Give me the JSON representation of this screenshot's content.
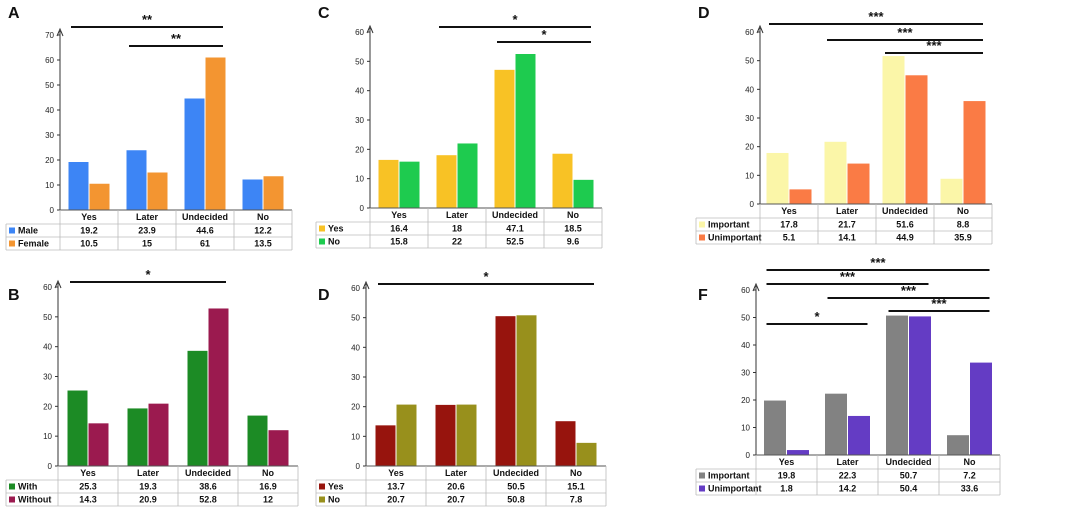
{
  "chart_data": [
    {
      "id": "A",
      "panel_label": "A",
      "type": "bar",
      "categories": [
        "Yes",
        "Later",
        "Undecided",
        "No"
      ],
      "ylim": [
        0,
        70
      ],
      "yticks": [
        0,
        10,
        20,
        30,
        40,
        50,
        60,
        70
      ],
      "series": [
        {
          "name": "Male",
          "color": "#3d85f5",
          "values": [
            19.2,
            23.9,
            44.6,
            12.2
          ],
          "labels": [
            "19.2",
            "23.9",
            "44.6",
            "12.2"
          ]
        },
        {
          "name": "Female",
          "color": "#f39531",
          "values": [
            10.5,
            15,
            61,
            13.5
          ],
          "labels": [
            "10.5",
            "15",
            "61",
            "13.5"
          ]
        }
      ],
      "significance": [
        {
          "from": "Yes",
          "to": "Undecided",
          "label": "**"
        },
        {
          "from": "Later",
          "to": "Undecided",
          "label": "**"
        }
      ]
    },
    {
      "id": "C",
      "panel_label": "C",
      "type": "bar",
      "categories": [
        "Yes",
        "Later",
        "Undecided",
        "No"
      ],
      "ylim": [
        0,
        60
      ],
      "yticks": [
        0,
        10,
        20,
        30,
        40,
        50,
        60
      ],
      "series": [
        {
          "name": "Yes",
          "color": "#f8c225",
          "values": [
            16.4,
            18,
            47.1,
            18.5
          ],
          "labels": [
            "16.4",
            "18",
            "47.1",
            "18.5"
          ]
        },
        {
          "name": "No",
          "color": "#1ecb4f",
          "values": [
            15.8,
            22,
            52.5,
            9.6
          ],
          "labels": [
            "15.8",
            "22",
            "52.5",
            "9.6"
          ]
        }
      ],
      "significance": [
        {
          "from": "Later",
          "to": "No",
          "label": "*"
        },
        {
          "from": "Undecided",
          "to": "No",
          "label": "*"
        }
      ]
    },
    {
      "id": "D1",
      "panel_label": "D",
      "type": "bar",
      "categories": [
        "Yes",
        "Later",
        "Undecided",
        "No"
      ],
      "ylim": [
        0,
        60
      ],
      "yticks": [
        0,
        10,
        20,
        30,
        40,
        50,
        60
      ],
      "series": [
        {
          "name": "Important",
          "color": "#fbf6a8",
          "values": [
            17.8,
            21.7,
            51.6,
            8.8
          ],
          "labels": [
            "17.8",
            "21.7",
            "51.6",
            "8.8"
          ]
        },
        {
          "name": "Unimportant",
          "color": "#fa7b45",
          "values": [
            5.1,
            14.1,
            44.9,
            35.9
          ],
          "labels": [
            "5.1",
            "14.1",
            "44.9",
            "35.9"
          ]
        }
      ],
      "significance": [
        {
          "from": "Yes",
          "to": "No",
          "label": "***"
        },
        {
          "from": "Later",
          "to": "No",
          "label": "***"
        },
        {
          "from": "Undecided",
          "to": "No",
          "label": "***"
        }
      ]
    },
    {
      "id": "B",
      "panel_label": "B",
      "type": "bar",
      "categories": [
        "Yes",
        "Later",
        "Undecided",
        "No"
      ],
      "ylim": [
        0,
        60
      ],
      "yticks": [
        0,
        10,
        20,
        30,
        40,
        50,
        60
      ],
      "series": [
        {
          "name": "With",
          "color": "#1c8b25",
          "values": [
            25.3,
            19.3,
            38.6,
            16.9
          ],
          "labels": [
            "25.3",
            "19.3",
            "38.6",
            "16.9"
          ]
        },
        {
          "name": "Without",
          "color": "#9b1a4f",
          "values": [
            14.3,
            20.9,
            52.8,
            12
          ],
          "labels": [
            "14.3",
            "20.9",
            "52.8",
            "12"
          ]
        }
      ],
      "significance": [
        {
          "from": "Yes",
          "to": "Undecided",
          "label": "*"
        }
      ]
    },
    {
      "id": "D2",
      "panel_label": "D",
      "type": "bar",
      "categories": [
        "Yes",
        "Later",
        "Undecided",
        "No"
      ],
      "ylim": [
        0,
        60
      ],
      "yticks": [
        0,
        10,
        20,
        30,
        40,
        50,
        60
      ],
      "series": [
        {
          "name": "Yes",
          "color": "#97140d",
          "values": [
            13.7,
            20.6,
            50.5,
            15.1
          ],
          "labels": [
            "13.7",
            "20.6",
            "50.5",
            "15.1"
          ]
        },
        {
          "name": "No",
          "color": "#98901c",
          "values": [
            20.7,
            20.7,
            50.8,
            7.8
          ],
          "labels": [
            "20.7",
            "20.7",
            "50.8",
            "7.8"
          ]
        }
      ],
      "significance": [
        {
          "from": "Yes",
          "to": "No",
          "label": "*"
        }
      ]
    },
    {
      "id": "F",
      "panel_label": "F",
      "type": "bar",
      "categories": [
        "Yes",
        "Later",
        "Undecided",
        "No"
      ],
      "ylim": [
        0,
        60
      ],
      "yticks": [
        0,
        10,
        20,
        30,
        40,
        50,
        60
      ],
      "series": [
        {
          "name": "Important",
          "color": "#828282",
          "values": [
            19.8,
            22.3,
            50.7,
            7.2
          ],
          "labels": [
            "19.8",
            "22.3",
            "50.7",
            "7.2"
          ]
        },
        {
          "name": "Unimportant",
          "color": "#643cc4",
          "values": [
            1.8,
            14.2,
            50.4,
            33.6
          ],
          "labels": [
            "1.8",
            "14.2",
            "50.4",
            "33.6"
          ]
        }
      ],
      "significance": [
        {
          "from": "Yes",
          "to": "No",
          "label": "***"
        },
        {
          "from": "Yes",
          "to": "Undecided",
          "label": "***"
        },
        {
          "from": "Later",
          "to": "No",
          "label": "***"
        },
        {
          "from": "Undecided",
          "to": "No",
          "label": "***"
        },
        {
          "from": "Yes",
          "to": "Later",
          "label": "*"
        }
      ]
    }
  ]
}
